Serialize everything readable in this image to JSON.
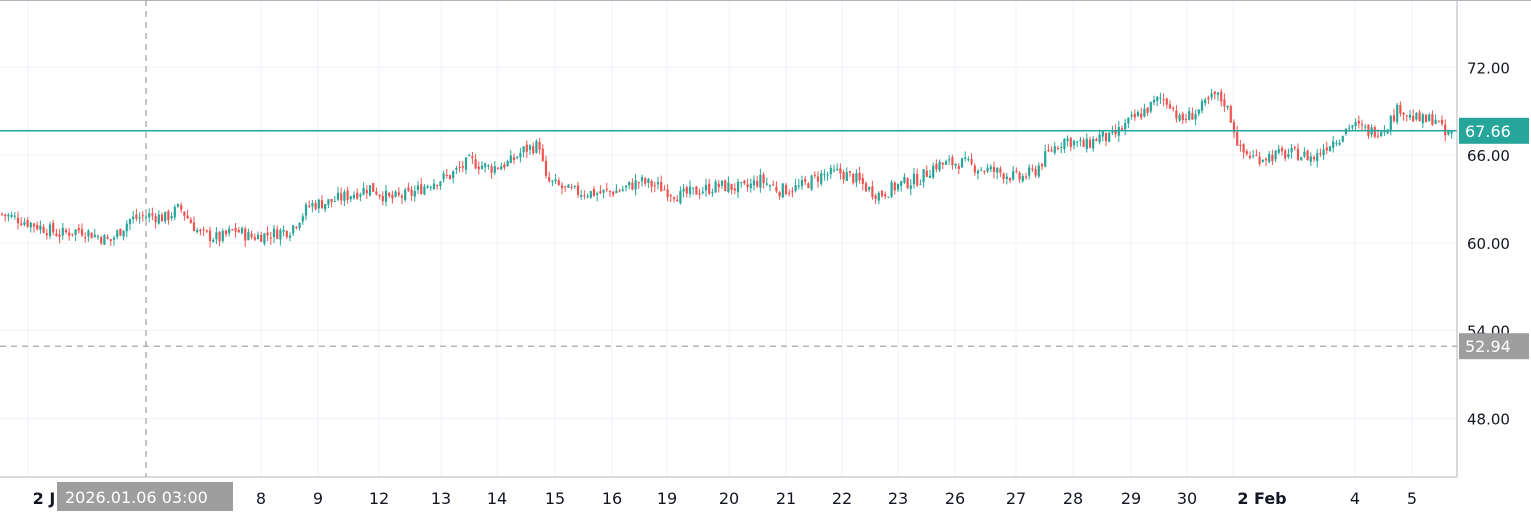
{
  "chart_data": {
    "type": "candlestick",
    "title": "",
    "xlabel": "",
    "ylabel": "",
    "ylim": [
      44.0,
      76.6
    ],
    "y_ticks": [
      "72.00",
      "66.00",
      "60.00",
      "54.00",
      "48.00"
    ],
    "y_tick_values": [
      72,
      66,
      60,
      54,
      48
    ],
    "x_ticks": [
      "2 J",
      "8",
      "9",
      "12",
      "13",
      "14",
      "15",
      "16",
      "19",
      "20",
      "21",
      "22",
      "23",
      "26",
      "27",
      "28",
      "29",
      "30",
      "2 Feb",
      "4",
      "5"
    ],
    "x_ticks_bold": [
      "2 J",
      "2 Feb"
    ],
    "current_price": {
      "label": "67.66",
      "value": 67.66,
      "color": "#26a69a"
    },
    "crosshair": {
      "price_label": "52.94",
      "price_value": 52.94,
      "time_label": "2026.01.06 03:00",
      "color": "#9e9e9e"
    },
    "colors": {
      "up": "#26a69a",
      "down": "#ef5350",
      "grid": "#f0f3fa",
      "axis": "#b2b5be"
    },
    "close_path": [
      [
        0,
        62.0
      ],
      [
        20,
        61.6
      ],
      [
        40,
        61.1
      ],
      [
        60,
        60.6
      ],
      [
        80,
        60.9
      ],
      [
        100,
        60.4
      ],
      [
        110,
        60.1
      ],
      [
        130,
        61.6
      ],
      [
        150,
        61.9
      ],
      [
        165,
        61.7
      ],
      [
        180,
        62.4
      ],
      [
        200,
        60.6
      ],
      [
        220,
        60.3
      ],
      [
        235,
        60.9
      ],
      [
        250,
        60.4
      ],
      [
        270,
        60.6
      ],
      [
        290,
        60.9
      ],
      [
        310,
        62.6
      ],
      [
        330,
        62.8
      ],
      [
        350,
        63.3
      ],
      [
        370,
        63.8
      ],
      [
        390,
        63.0
      ],
      [
        410,
        63.3
      ],
      [
        430,
        64.1
      ],
      [
        450,
        64.6
      ],
      [
        470,
        65.6
      ],
      [
        490,
        65.1
      ],
      [
        510,
        65.5
      ],
      [
        525,
        66.4
      ],
      [
        540,
        66.7
      ],
      [
        545,
        64.3
      ],
      [
        570,
        63.5
      ],
      [
        600,
        63.4
      ],
      [
        620,
        63.6
      ],
      [
        640,
        64.2
      ],
      [
        660,
        63.8
      ],
      [
        680,
        63.2
      ],
      [
        700,
        63.6
      ],
      [
        720,
        63.9
      ],
      [
        745,
        63.7
      ],
      [
        760,
        64.3
      ],
      [
        780,
        63.6
      ],
      [
        800,
        63.8
      ],
      [
        820,
        64.6
      ],
      [
        840,
        64.8
      ],
      [
        855,
        64.4
      ],
      [
        870,
        63.6
      ],
      [
        880,
        63.3
      ],
      [
        900,
        64.0
      ],
      [
        920,
        64.4
      ],
      [
        935,
        65.3
      ],
      [
        960,
        65.5
      ],
      [
        980,
        65.1
      ],
      [
        1000,
        64.8
      ],
      [
        1020,
        64.4
      ],
      [
        1035,
        64.9
      ],
      [
        1050,
        66.3
      ],
      [
        1065,
        67.1
      ],
      [
        1085,
        66.6
      ],
      [
        1100,
        67.3
      ],
      [
        1110,
        67.1
      ],
      [
        1130,
        68.3
      ],
      [
        1150,
        69.3
      ],
      [
        1160,
        69.9
      ],
      [
        1170,
        69.6
      ],
      [
        1180,
        68.3
      ],
      [
        1200,
        69.1
      ],
      [
        1215,
        70.1
      ],
      [
        1225,
        69.6
      ],
      [
        1232,
        68.3
      ],
      [
        1240,
        66.3
      ],
      [
        1255,
        65.8
      ],
      [
        1275,
        66.0
      ],
      [
        1295,
        66.1
      ],
      [
        1315,
        65.8
      ],
      [
        1325,
        66.6
      ],
      [
        1340,
        67.3
      ],
      [
        1350,
        68.1
      ],
      [
        1370,
        67.6
      ],
      [
        1385,
        67.9
      ],
      [
        1400,
        69.3
      ],
      [
        1410,
        68.6
      ],
      [
        1425,
        68.3
      ],
      [
        1435,
        68.6
      ],
      [
        1445,
        67.3
      ],
      [
        1455,
        67.66
      ]
    ]
  }
}
